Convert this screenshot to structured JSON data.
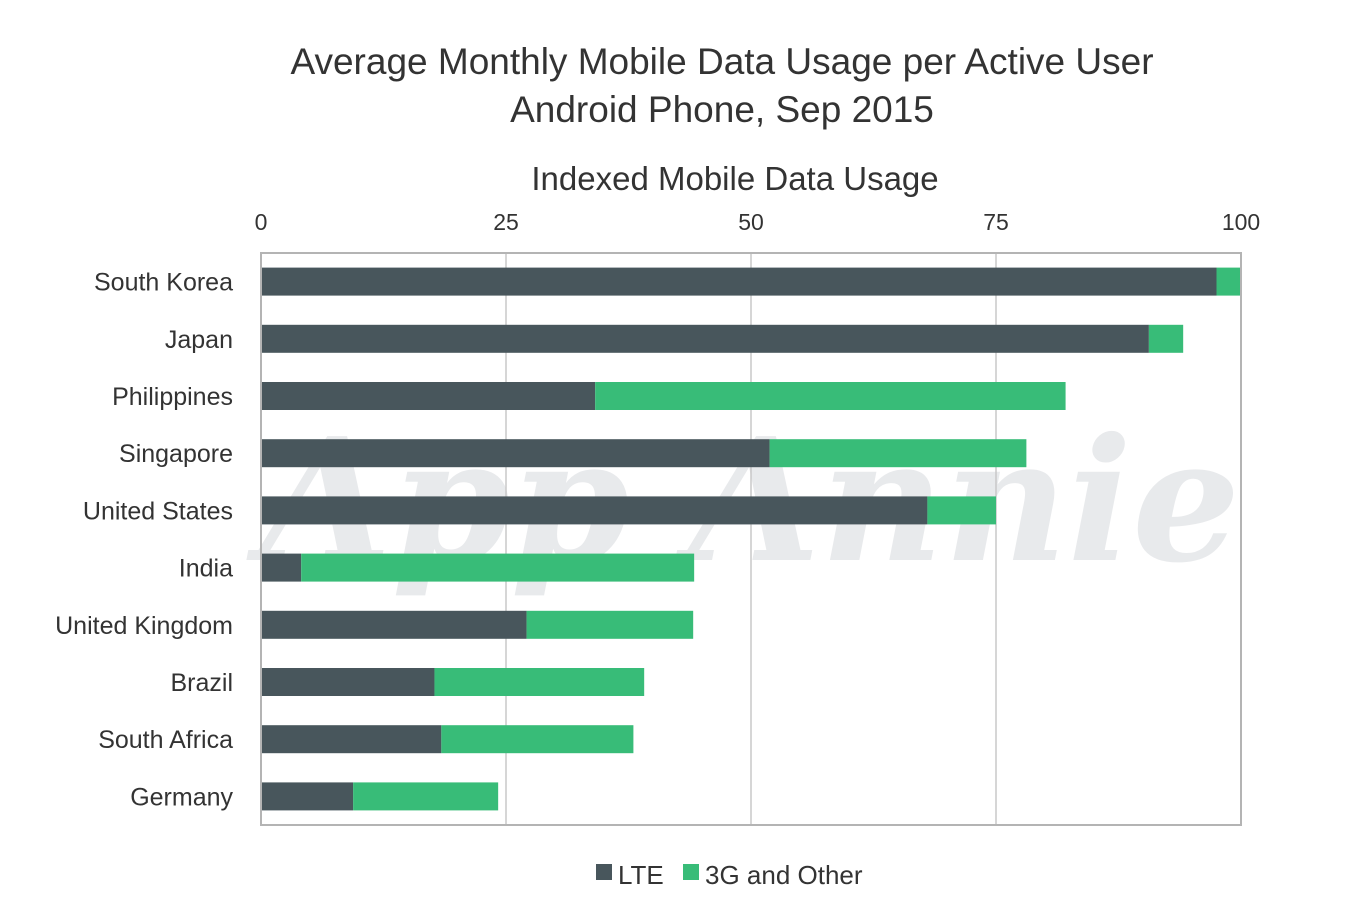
{
  "chart_data": {
    "type": "bar",
    "orientation": "horizontal",
    "stacked": true,
    "title": "Average Monthly Mobile Data Usage per Active User",
    "subtitle": "Android Phone, Sep 2015",
    "xlabel": "Indexed Mobile Data Usage",
    "ylabel": "",
    "xlim": [
      0,
      100
    ],
    "xticks": [
      "0",
      "25",
      "50",
      "75",
      "100"
    ],
    "grid": true,
    "legend_position": "bottom",
    "categories": [
      "South Korea",
      "Japan",
      "Philippines",
      "Singapore",
      "United States",
      "India",
      "United Kingdom",
      "Brazil",
      "South Africa",
      "Germany"
    ],
    "series": [
      {
        "name": "LTE",
        "color": "#48565c",
        "values": [
          97.5,
          90.6,
          34.1,
          51.9,
          68.0,
          4.1,
          27.1,
          17.7,
          18.4,
          9.4
        ]
      },
      {
        "name": "3G and Other",
        "color": "#38bc78",
        "values": [
          2.5,
          3.5,
          48.0,
          26.2,
          7.0,
          40.1,
          17.0,
          21.4,
          19.6,
          14.8
        ]
      }
    ]
  },
  "watermark": "App Annie"
}
